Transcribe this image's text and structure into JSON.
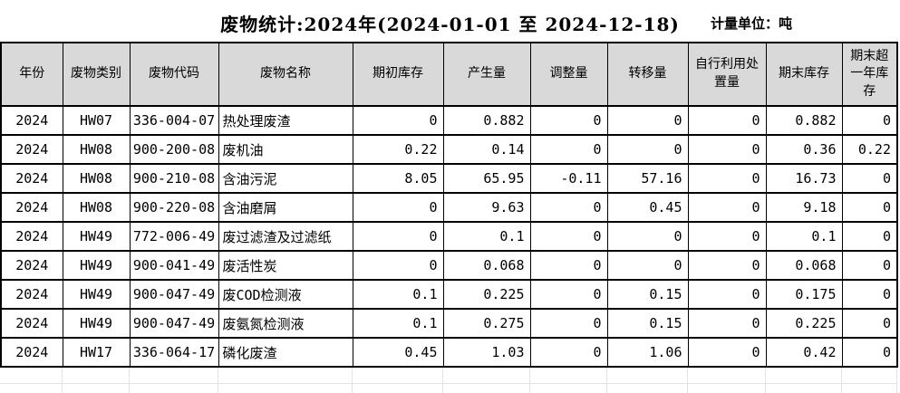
{
  "title": "废物统计:2024年(2024-01-01 至 2024-12-18)",
  "unit_label": "计量单位：吨",
  "colors": {
    "background": "#FFFFFF",
    "header_bg": "#D9D9D9",
    "border": "#000000",
    "grid_faint": "#E3E3E3",
    "text": "#000000"
  },
  "table": {
    "columns": [
      {
        "label": "年份"
      },
      {
        "label": "废物类别"
      },
      {
        "label": "废物代码"
      },
      {
        "label": "废物名称"
      },
      {
        "label": "期初库存"
      },
      {
        "label": "产生量"
      },
      {
        "label": "调整量"
      },
      {
        "label": "转移量"
      },
      {
        "label": "自行利用处置量"
      },
      {
        "label": "期末库存"
      },
      {
        "label": "期末超一年库存"
      }
    ],
    "rows": [
      {
        "year": "2024",
        "category": "HW07",
        "code": "336-004-07",
        "name": "热处理废渣",
        "opening": "0",
        "generated": "0.882",
        "adjusted": "0",
        "transferred": "0",
        "self_disposed": "0",
        "closing": "0.882",
        "over_year": "0"
      },
      {
        "year": "2024",
        "category": "HW08",
        "code": "900-200-08",
        "name": "废机油",
        "opening": "0.22",
        "generated": "0.14",
        "adjusted": "0",
        "transferred": "0",
        "self_disposed": "0",
        "closing": "0.36",
        "over_year": "0.22"
      },
      {
        "year": "2024",
        "category": "HW08",
        "code": "900-210-08",
        "name": "含油污泥",
        "opening": "8.05",
        "generated": "65.95",
        "adjusted": "-0.11",
        "transferred": "57.16",
        "self_disposed": "0",
        "closing": "16.73",
        "over_year": "0"
      },
      {
        "year": "2024",
        "category": "HW08",
        "code": "900-220-08",
        "name": "含油磨屑",
        "opening": "0",
        "generated": "9.63",
        "adjusted": "0",
        "transferred": "0.45",
        "self_disposed": "0",
        "closing": "9.18",
        "over_year": "0"
      },
      {
        "year": "2024",
        "category": "HW49",
        "code": "772-006-49",
        "name": "废过滤渣及过滤纸",
        "opening": "0",
        "generated": "0.1",
        "adjusted": "0",
        "transferred": "0",
        "self_disposed": "0",
        "closing": "0.1",
        "over_year": "0"
      },
      {
        "year": "2024",
        "category": "HW49",
        "code": "900-041-49",
        "name": "废活性炭",
        "opening": "0",
        "generated": "0.068",
        "adjusted": "0",
        "transferred": "0",
        "self_disposed": "0",
        "closing": "0.068",
        "over_year": "0"
      },
      {
        "year": "2024",
        "category": "HW49",
        "code": "900-047-49",
        "name": "废COD检测液",
        "opening": "0.1",
        "generated": "0.225",
        "adjusted": "0",
        "transferred": "0.15",
        "self_disposed": "0",
        "closing": "0.175",
        "over_year": "0"
      },
      {
        "year": "2024",
        "category": "HW49",
        "code": "900-047-49",
        "name": "废氨氮检测液",
        "opening": "0.1",
        "generated": "0.275",
        "adjusted": "0",
        "transferred": "0.15",
        "self_disposed": "0",
        "closing": "0.225",
        "over_year": "0"
      },
      {
        "year": "2024",
        "category": "HW17",
        "code": "336-064-17",
        "name": "磷化废渣",
        "opening": "0.45",
        "generated": "1.03",
        "adjusted": "0",
        "transferred": "1.06",
        "self_disposed": "0",
        "closing": "0.42",
        "over_year": "0"
      }
    ]
  }
}
